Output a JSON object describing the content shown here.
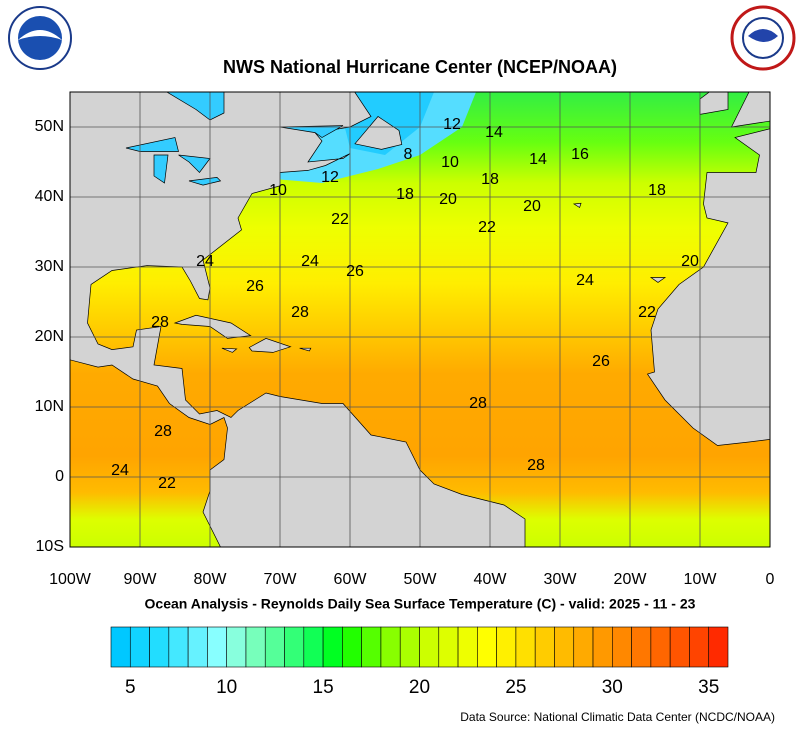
{
  "header": {
    "title": "NWS National Hurricane Center (NCEP/NOAA)"
  },
  "map": {
    "subtitle": "Ocean Analysis - Reynolds Daily Sea Surface Temperature (C) - valid: 2025 - 11 - 23",
    "lon_range": [
      -100,
      0
    ],
    "lat_range": [
      -10,
      55
    ],
    "lon_ticks": [
      {
        "value": -100,
        "label": "100W"
      },
      {
        "value": -90,
        "label": "90W"
      },
      {
        "value": -80,
        "label": "80W"
      },
      {
        "value": -70,
        "label": "70W"
      },
      {
        "value": -60,
        "label": "60W"
      },
      {
        "value": -50,
        "label": "50W"
      },
      {
        "value": -40,
        "label": "40W"
      },
      {
        "value": -30,
        "label": "30W"
      },
      {
        "value": -20,
        "label": "20W"
      },
      {
        "value": -10,
        "label": "10W"
      },
      0
    ],
    "lat_ticks": [
      {
        "value": 50,
        "label": "50N"
      },
      {
        "value": 40,
        "label": "40N"
      },
      {
        "value": 30,
        "label": "30N"
      },
      {
        "value": 20,
        "label": "20N"
      },
      {
        "value": 10,
        "label": "10N"
      },
      0,
      {
        "value": -10,
        "label": "10S"
      }
    ],
    "contour_labels": [
      "12",
      "14",
      "8",
      "10",
      "14",
      "16",
      "12",
      "10",
      "18",
      "18",
      "20",
      "22",
      "22",
      "20",
      "18",
      "24",
      "24",
      "26",
      "26",
      "24",
      "20",
      "28",
      "22",
      "28",
      "26",
      "28",
      "28",
      "24",
      "22",
      "28"
    ]
  },
  "colorbar": {
    "range": [
      4,
      36
    ],
    "ticks": [
      5,
      10,
      15,
      20,
      25,
      30,
      35
    ],
    "colors": [
      "#00c8ff",
      "#11d4ff",
      "#22ddff",
      "#44e8ff",
      "#66f2ff",
      "#88ffff",
      "#88ffdd",
      "#77ffbb",
      "#55ff99",
      "#33ff77",
      "#11ff55",
      "#00ff22",
      "#22ff00",
      "#55ff00",
      "#88ff00",
      "#aaff00",
      "#ccff00",
      "#ddff00",
      "#eeff00",
      "#ffff00",
      "#fff000",
      "#ffe000",
      "#ffcc00",
      "#ffbb00",
      "#ffaa00",
      "#ff9900",
      "#ff8800",
      "#ff7700",
      "#ff6600",
      "#ff5500",
      "#ff4400",
      "#ff2a00"
    ]
  },
  "footer": {
    "source": "Data Source: National Climatic Data Center (NCDC/NOAA)"
  }
}
